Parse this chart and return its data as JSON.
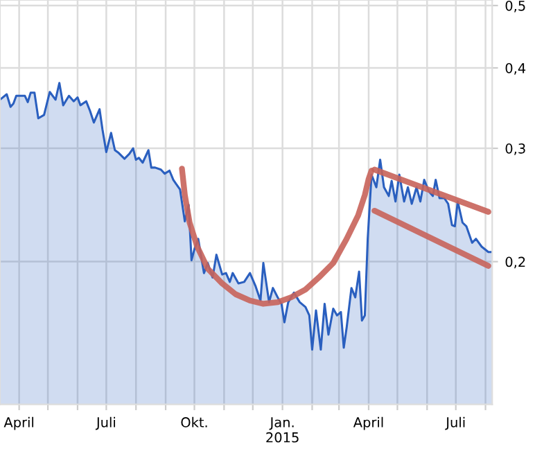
{
  "chart_data": {
    "type": "area",
    "log": "y",
    "grid": true,
    "line_style": "solid",
    "marker": "none",
    "x": [
      "2014-03-12",
      "2014-03-19",
      "2014-03-23",
      "2014-03-26",
      "2014-03-29",
      "2014-04-02",
      "2014-04-07",
      "2014-04-10",
      "2014-04-13",
      "2014-04-17",
      "2014-04-21",
      "2014-04-27",
      "2014-05-03",
      "2014-05-09",
      "2014-05-13",
      "2014-05-17",
      "2014-05-23",
      "2014-05-28",
      "2014-06-01",
      "2014-06-04",
      "2014-06-10",
      "2014-06-14",
      "2014-06-18",
      "2014-06-24",
      "2014-06-27",
      "2014-07-01",
      "2014-07-06",
      "2014-07-10",
      "2014-07-14",
      "2014-07-20",
      "2014-07-25",
      "2014-07-29",
      "2014-08-01",
      "2014-08-04",
      "2014-08-08",
      "2014-08-14",
      "2014-08-17",
      "2014-08-21",
      "2014-08-27",
      "2014-08-31",
      "2014-09-05",
      "2014-09-09",
      "2014-09-12",
      "2014-09-16",
      "2014-09-21",
      "2014-09-25",
      "2014-09-28",
      "2014-10-01",
      "2014-10-05",
      "2014-10-11",
      "2014-10-15",
      "2014-10-20",
      "2014-10-24",
      "2014-10-30",
      "2014-11-03",
      "2014-11-07",
      "2014-11-10",
      "2014-11-16",
      "2014-11-22",
      "2014-11-28",
      "2014-12-04",
      "2014-12-09",
      "2014-12-12",
      "2014-12-18",
      "2014-12-22",
      "2014-12-27",
      "2014-12-31",
      "2015-01-03",
      "2015-01-07",
      "2015-01-13",
      "2015-01-19",
      "2015-01-25",
      "2015-01-29",
      "2015-02-01",
      "2015-02-05",
      "2015-02-10",
      "2015-02-14",
      "2015-02-18",
      "2015-02-23",
      "2015-02-27",
      "2015-03-03",
      "2015-03-06",
      "2015-03-09",
      "2015-03-14",
      "2015-03-18",
      "2015-03-22",
      "2015-03-25",
      "2015-03-28",
      "2015-03-31",
      "2015-04-04",
      "2015-04-09",
      "2015-04-13",
      "2015-04-17",
      "2015-04-22",
      "2015-04-25",
      "2015-04-29",
      "2015-05-03",
      "2015-05-08",
      "2015-05-12",
      "2015-05-16",
      "2015-05-21",
      "2015-05-25",
      "2015-05-29",
      "2015-06-03",
      "2015-06-07",
      "2015-06-10",
      "2015-06-14",
      "2015-06-19",
      "2015-06-23",
      "2015-06-27",
      "2015-06-30",
      "2015-07-03",
      "2015-07-08",
      "2015-07-12",
      "2015-07-18",
      "2015-07-22",
      "2015-07-28",
      "2015-08-04",
      "2015-08-08"
    ],
    "series": [
      {
        "color": "#2a5fbf",
        "values": [
          0.357,
          0.364,
          0.348,
          0.352,
          0.362,
          0.362,
          0.362,
          0.354,
          0.366,
          0.366,
          0.334,
          0.338,
          0.367,
          0.357,
          0.379,
          0.35,
          0.362,
          0.355,
          0.36,
          0.35,
          0.355,
          0.343,
          0.329,
          0.345,
          0.321,
          0.296,
          0.317,
          0.298,
          0.295,
          0.289,
          0.294,
          0.3,
          0.288,
          0.29,
          0.285,
          0.298,
          0.28,
          0.28,
          0.278,
          0.274,
          0.277,
          0.268,
          0.264,
          0.259,
          0.231,
          0.245,
          0.201,
          0.209,
          0.217,
          0.192,
          0.199,
          0.189,
          0.205,
          0.191,
          0.192,
          0.186,
          0.192,
          0.185,
          0.186,
          0.192,
          0.183,
          0.174,
          0.199,
          0.173,
          0.182,
          0.176,
          0.172,
          0.161,
          0.173,
          0.179,
          0.173,
          0.17,
          0.165,
          0.146,
          0.168,
          0.146,
          0.172,
          0.154,
          0.169,
          0.165,
          0.167,
          0.147,
          0.158,
          0.182,
          0.176,
          0.193,
          0.162,
          0.165,
          0.217,
          0.273,
          0.261,
          0.288,
          0.261,
          0.253,
          0.267,
          0.248,
          0.273,
          0.248,
          0.261,
          0.246,
          0.261,
          0.248,
          0.268,
          0.257,
          0.253,
          0.268,
          0.251,
          0.251,
          0.246,
          0.228,
          0.227,
          0.248,
          0.23,
          0.227,
          0.214,
          0.217,
          0.211,
          0.207,
          0.207
        ]
      },
      {
        "type": "line",
        "color": "#c8635a",
        "x": [
          "2014-09-18",
          "2014-09-21",
          "2014-09-26",
          "2014-10-04",
          "2014-10-15",
          "2014-10-30",
          "2014-11-13",
          "2014-11-28",
          "2014-12-12",
          "2014-12-27",
          "2015-01-10",
          "2015-01-25",
          "2015-02-08",
          "2015-02-23",
          "2015-03-09",
          "2015-03-21",
          "2015-03-28",
          "2015-04-01",
          "2015-04-04"
        ],
        "values": [
          0.279,
          0.254,
          0.23,
          0.211,
          0.195,
          0.185,
          0.178,
          0.174,
          0.172,
          0.173,
          0.176,
          0.181,
          0.189,
          0.199,
          0.217,
          0.236,
          0.254,
          0.269,
          0.277
        ]
      },
      {
        "type": "line",
        "color": "#c8635a",
        "x": [
          "2015-04-07",
          "2015-08-04"
        ],
        "values": [
          0.278,
          0.239
        ]
      },
      {
        "type": "line",
        "color": "#c8635a",
        "x": [
          "2015-04-07",
          "2015-08-04"
        ],
        "values": [
          0.24,
          0.197
        ]
      }
    ],
    "xlim": [
      "2014-03-12",
      "2015-08-08"
    ],
    "xticks": [
      {
        "value": "2014-04-01",
        "label": "April"
      },
      {
        "value": "2014-05-01",
        "label": null
      },
      {
        "value": "2014-06-01",
        "label": null
      },
      {
        "value": "2014-07-01",
        "label": "Juli"
      },
      {
        "value": "2014-08-01",
        "label": null
      },
      {
        "value": "2014-09-01",
        "label": null
      },
      {
        "value": "2014-10-01",
        "label": "Okt."
      },
      {
        "value": "2014-11-01",
        "label": null
      },
      {
        "value": "2014-12-01",
        "label": null
      },
      {
        "value": "2015-01-01",
        "label": "Jan.\n2015"
      },
      {
        "value": "2015-02-01",
        "label": null
      },
      {
        "value": "2015-03-01",
        "label": null
      },
      {
        "value": "2015-04-01",
        "label": "April"
      },
      {
        "value": "2015-05-01",
        "label": null
      },
      {
        "value": "2015-06-01",
        "label": null
      },
      {
        "value": "2015-07-01",
        "label": "Juli"
      },
      {
        "value": "2015-08-01",
        "label": null
      }
    ],
    "ylim": [
      0.12,
      0.51
    ],
    "yticks": [
      {
        "value": 0.2,
        "label": "0,2"
      },
      {
        "value": 0.3,
        "label": "0,3"
      },
      {
        "value": 0.4,
        "label": "0,4"
      },
      {
        "value": 0.5,
        "label": "0,5"
      }
    ]
  }
}
